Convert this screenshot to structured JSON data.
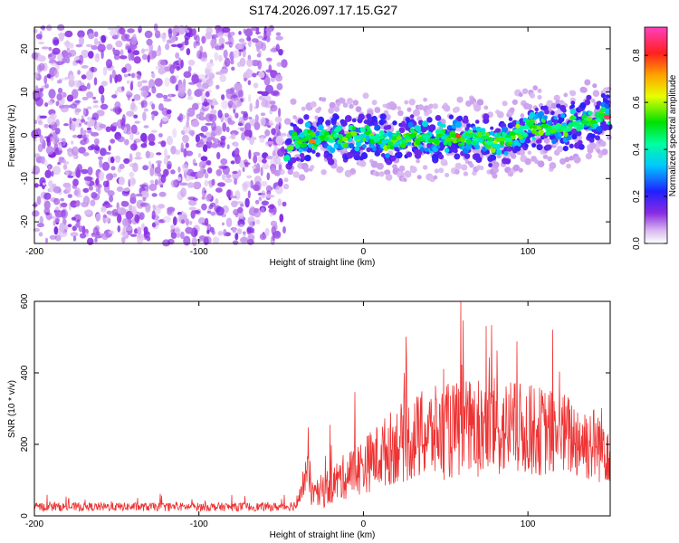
{
  "title": "S174.2026.097.17.15.G27",
  "chart_data": [
    {
      "type": "heatmap",
      "name": "spectrogram",
      "xlabel": "Height of straight line (km)",
      "ylabel": "Frequency (Hz)",
      "xlim": [
        -200,
        150
      ],
      "ylim": [
        -25,
        25
      ],
      "xticks": [
        -200,
        -100,
        0,
        100
      ],
      "xtick_labels": [
        "-200",
        "-100",
        "0",
        "100"
      ],
      "yticks": [
        -20,
        -10,
        0,
        10,
        20
      ],
      "ytick_labels": [
        "-20",
        "-10",
        "0",
        "10",
        "20"
      ],
      "colorbar": {
        "label": "Normalized spectral amplitude",
        "range": [
          0,
          0.92
        ],
        "ticks": [
          0,
          0.2,
          0.4,
          0.6,
          0.8
        ],
        "tick_labels": [
          "0.0",
          "0.2",
          "0.4",
          "0.6",
          "0.8"
        ]
      },
      "noise_region_x": [
        -200,
        -48
      ],
      "signal_onset_x": -47,
      "signal_trace": {
        "x": [
          -48,
          -45,
          -42,
          -35,
          -25,
          -15,
          -5,
          0,
          5,
          10,
          15,
          20,
          30,
          40,
          50,
          60,
          70,
          80,
          85,
          90,
          100,
          105,
          110,
          120,
          130,
          140,
          150
        ],
        "frequency": [
          -5,
          -4,
          -1,
          -1,
          -1,
          -0.5,
          0,
          0,
          0,
          -1,
          -1.5,
          -1,
          -0.5,
          -1,
          -0.5,
          -0.5,
          -0.5,
          -2,
          -1,
          0,
          2,
          2.5,
          1.5,
          1.5,
          2.5,
          3.5,
          4.5
        ],
        "peak_amplitude": 0.9
      }
    },
    {
      "type": "line",
      "name": "snr",
      "xlabel": "Height of straight line (km)",
      "ylabel": "SNR (10 * v/v)",
      "xlim": [
        -200,
        150
      ],
      "ylim": [
        0,
        600
      ],
      "xticks": [
        -200,
        -100,
        0,
        100
      ],
      "xtick_labels": [
        "-200",
        "-100",
        "0",
        "100"
      ],
      "yticks": [
        0,
        200,
        400,
        600
      ],
      "ytick_labels": [
        "0",
        "200",
        "400",
        "600"
      ],
      "color": "#ee3333",
      "envelope": {
        "x": [
          -200,
          -150,
          -100,
          -50,
          -40,
          -35,
          -32,
          -30,
          -25,
          -15,
          0,
          20,
          40,
          60,
          80,
          100,
          120,
          140,
          150
        ],
        "mean": [
          25,
          25,
          25,
          25,
          30,
          120,
          90,
          50,
          70,
          100,
          140,
          200,
          230,
          240,
          245,
          240,
          230,
          200,
          200
        ],
        "spread": [
          12,
          12,
          12,
          12,
          15,
          60,
          60,
          40,
          50,
          60,
          80,
          110,
          130,
          140,
          140,
          130,
          120,
          110,
          110
        ],
        "max": 600
      }
    }
  ]
}
